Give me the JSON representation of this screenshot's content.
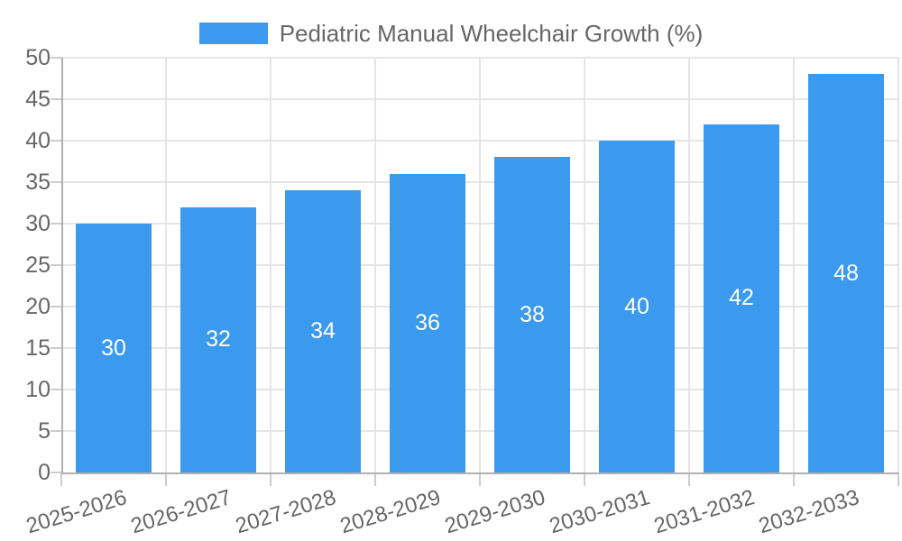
{
  "chart_data": {
    "type": "bar",
    "title": "Pediatric Manual Wheelchair Growth (%)",
    "categories": [
      "2025-2026",
      "2026-2027",
      "2027-2028",
      "2028-2029",
      "2029-2030",
      "2030-2031",
      "2031-2032",
      "2032-2033"
    ],
    "values": [
      30,
      32,
      34,
      36,
      38,
      40,
      42,
      48
    ],
    "bar_labels": [
      "30",
      "32",
      "34",
      "36",
      "38",
      "40",
      "42",
      "48"
    ],
    "xlabel": "",
    "ylabel": "",
    "ylim": [
      0,
      50
    ],
    "y_tick_step": 5,
    "y_tick_labels": [
      "0",
      "5",
      "10",
      "15",
      "20",
      "25",
      "30",
      "35",
      "40",
      "45",
      "50"
    ],
    "legend_position": "top",
    "grid": true,
    "colors": {
      "bar_fill": "#3b99ee",
      "bar_value_text": "#ffffff",
      "grid_line": "#e5e5e5",
      "axis_line": "#b0b0b0",
      "tick_mark": "#cccccc",
      "axis_text": "#666666",
      "legend_text": "#666666"
    }
  }
}
